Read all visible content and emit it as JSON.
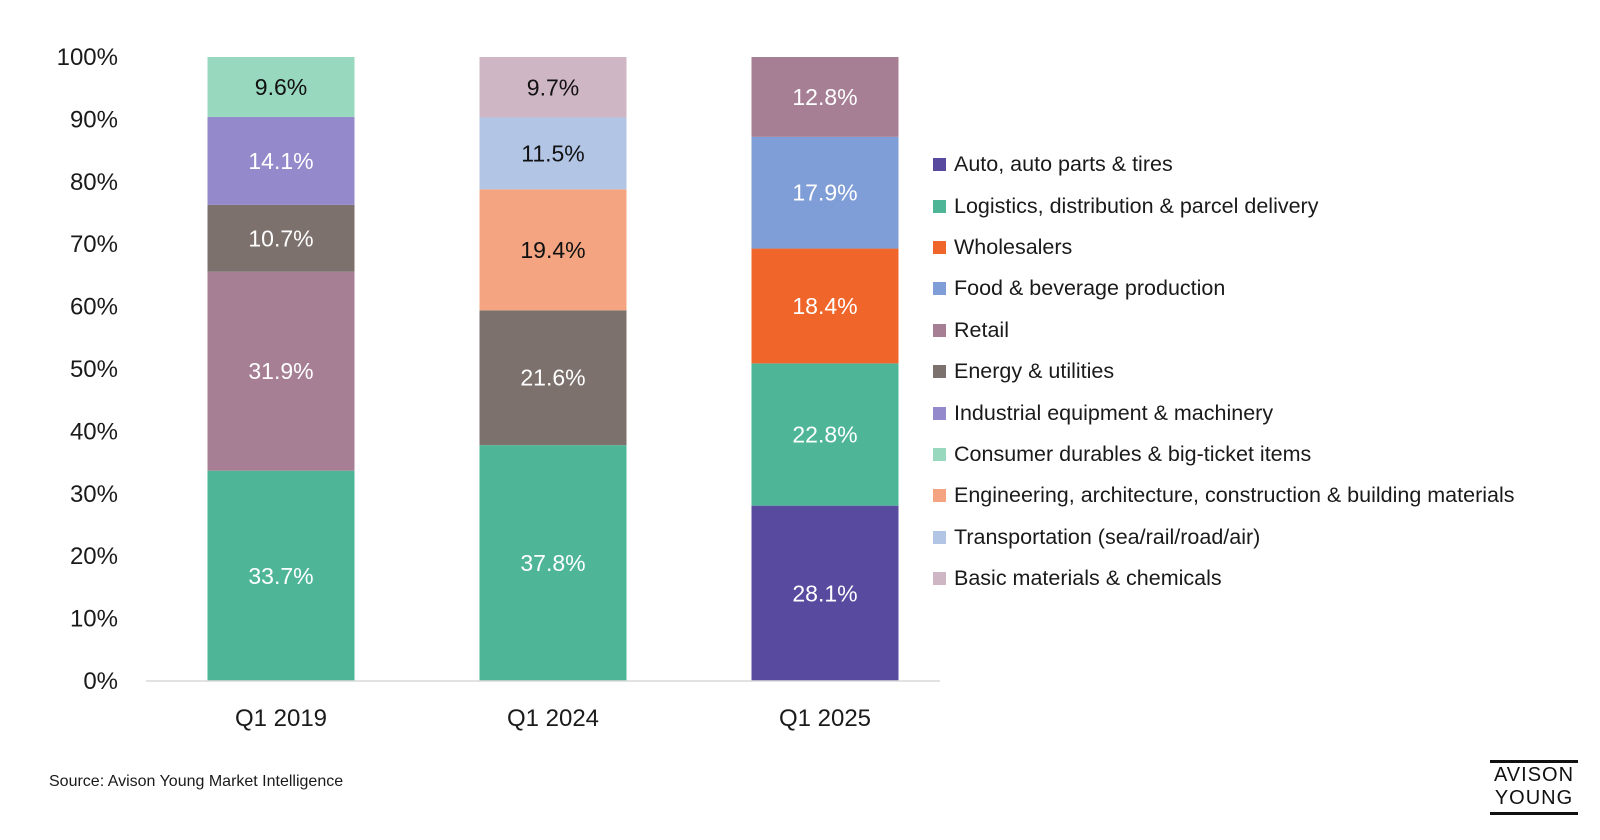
{
  "chart_data": {
    "type": "bar",
    "stacked": true,
    "categories": [
      "Q1 2019",
      "Q1 2024",
      "Q1 2025"
    ],
    "y_ticks": [
      "0%",
      "10%",
      "20%",
      "30%",
      "40%",
      "50%",
      "60%",
      "70%",
      "80%",
      "90%",
      "100%"
    ],
    "ylim": [
      0,
      100
    ],
    "legend_position": "right",
    "series": [
      {
        "name": "Auto, auto parts & tires",
        "color": "#584a9f",
        "label_color": "#ffffff",
        "values": [
          0,
          0,
          28.1
        ],
        "labels": [
          "",
          "",
          "28.1%"
        ]
      },
      {
        "name": "Logistics, distribution & parcel delivery",
        "color": "#4eb696",
        "label_color": "#ffffff",
        "values": [
          33.7,
          37.8,
          22.8
        ],
        "labels": [
          "33.7%",
          "37.8%",
          "22.8%"
        ]
      },
      {
        "name": "Wholesalers",
        "color": "#f0662a",
        "label_color": "#ffffff",
        "values": [
          0,
          0,
          18.4
        ],
        "labels": [
          "",
          "",
          "18.4%"
        ]
      },
      {
        "name": "Food & beverage production",
        "color": "#7f9dd6",
        "label_color": "#ffffff",
        "values": [
          0,
          0,
          17.9
        ],
        "labels": [
          "",
          "",
          "17.9%"
        ]
      },
      {
        "name": "Retail",
        "color": "#a67f95",
        "label_color": "#ffffff",
        "values": [
          31.9,
          0,
          12.8
        ],
        "labels": [
          "31.9%",
          "",
          "12.8%"
        ]
      },
      {
        "name": "Energy & utilities",
        "color": "#7d716d",
        "label_color": "#ffffff",
        "values": [
          10.7,
          21.6,
          0
        ],
        "labels": [
          "10.7%",
          "21.6%",
          ""
        ]
      },
      {
        "name": "Industrial equipment & machinery",
        "color": "#9489ca",
        "label_color": "#ffffff",
        "values": [
          14.1,
          0,
          0
        ],
        "labels": [
          "14.1%",
          "",
          ""
        ]
      },
      {
        "name": "Consumer durables & big-ticket items",
        "color": "#98d8bf",
        "label_color": "#111111",
        "values": [
          9.6,
          0,
          0
        ],
        "labels": [
          "9.6%",
          "",
          ""
        ]
      },
      {
        "name": "Engineering, architecture, construction & building materials",
        "color": "#f4a481",
        "label_color": "#111111",
        "values": [
          0,
          19.4,
          0
        ],
        "labels": [
          "",
          "19.4%",
          ""
        ]
      },
      {
        "name": "Transportation (sea/rail/road/air)",
        "color": "#b3c5e5",
        "label_color": "#111111",
        "values": [
          0,
          11.5,
          0
        ],
        "labels": [
          "",
          "11.5%",
          ""
        ]
      },
      {
        "name": "Basic materials & chemicals",
        "color": "#cfb6c4",
        "label_color": "#111111",
        "values": [
          0,
          9.7,
          0
        ],
        "labels": [
          "",
          "9.7%",
          ""
        ]
      }
    ]
  },
  "source": "Source: Avison Young Market Intelligence",
  "logo": {
    "line1": "AVISON",
    "line2": "YOUNG"
  }
}
